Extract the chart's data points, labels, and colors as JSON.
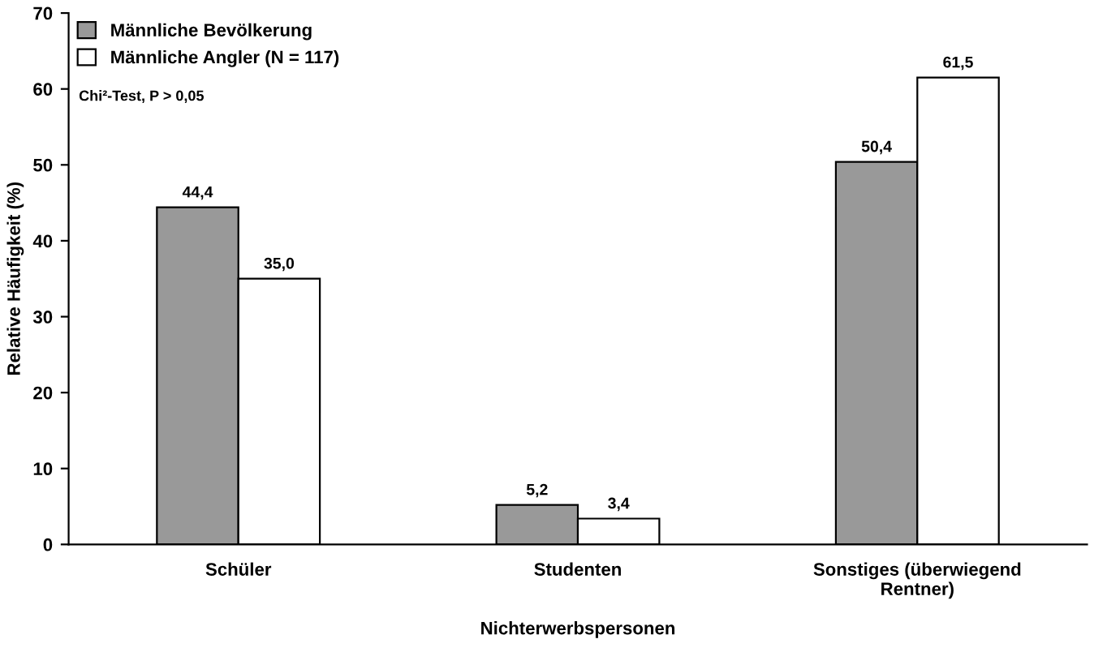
{
  "chart_data": {
    "type": "bar",
    "xlabel": "Nichterwerbspersonen",
    "ylabel": "Relative Häufigkeit (%)",
    "categories": [
      "Schüler",
      "Studenten",
      "Sonstiges (überwiegend\nRentner)"
    ],
    "series": [
      {
        "name": "Männliche Bevölkerung",
        "color": "#999999",
        "values": [
          44.4,
          5.2,
          50.4
        ],
        "value_labels": [
          "44,4",
          "5,2",
          "50,4"
        ]
      },
      {
        "name": "Männliche Angler (N = 117)",
        "color": "#ffffff",
        "values": [
          35.0,
          3.4,
          61.5
        ],
        "value_labels": [
          "35,0",
          "3,4",
          "61,5"
        ]
      }
    ],
    "ylim": [
      0,
      70
    ],
    "yticks": [
      0,
      10,
      20,
      30,
      40,
      50,
      60,
      70
    ],
    "grid": false,
    "legend": "top left",
    "annotations": [
      "Chi²-Test, P > 0,05"
    ]
  }
}
